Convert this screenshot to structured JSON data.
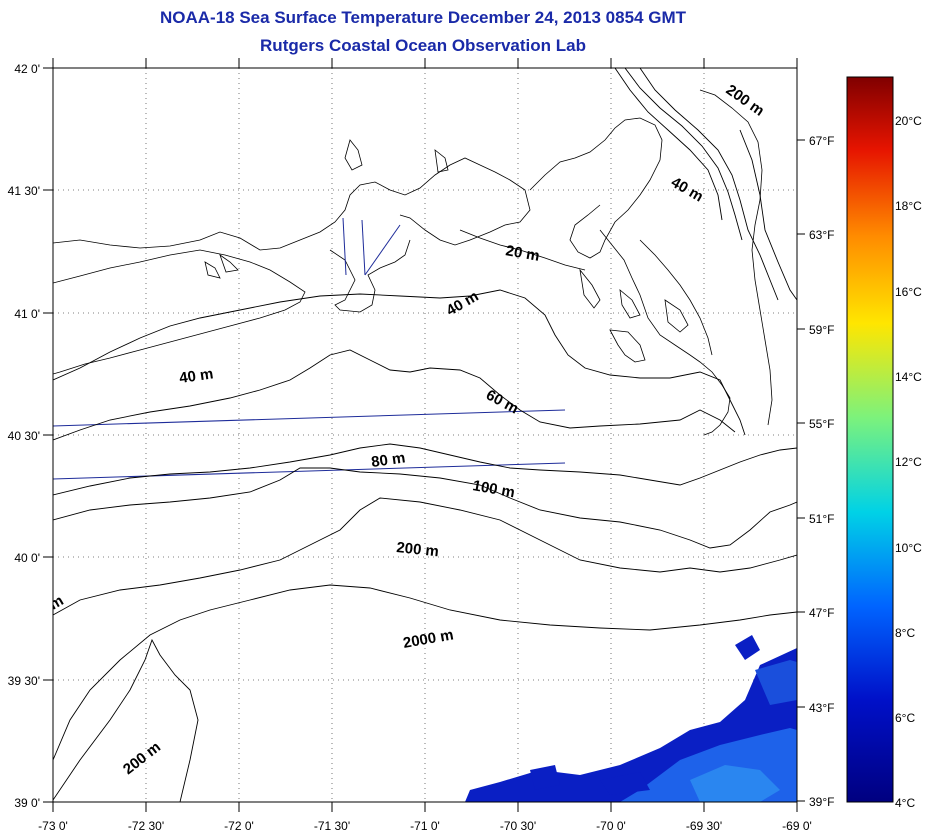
{
  "header": {
    "title": "NOAA-18 Sea Surface Temperature December 24, 2013 0854 GMT",
    "subtitle": "Rutgers Coastal Ocean Observation Lab"
  },
  "map": {
    "lon_labels": [
      "-73 0'",
      "-72 30'",
      "-72 0'",
      "-71 30'",
      "-71 0'",
      "-70 30'",
      "-70 0'",
      "-69 30'",
      "-69 0'"
    ],
    "lat_labels": [
      "42 0'",
      "41 30'",
      "41 0'",
      "40 30'",
      "40 0'",
      "39 30'",
      "39 0'"
    ],
    "fahrenheit_labels": [
      "67°F",
      "63°F",
      "59°F",
      "55°F",
      "51°F",
      "47°F",
      "43°F",
      "39°F"
    ],
    "depth_labels": {
      "d200_ne": "200 m",
      "d40_ne": "40 m",
      "d20": "20 m",
      "d40_center": "40 m",
      "d40_west": "40 m",
      "d60": "60 m",
      "d80": "80 m",
      "d100": "100 m",
      "d200_center": "200 m",
      "d2000": "2000 m",
      "d200_sw": "200 m",
      "dm_edge": "m"
    }
  },
  "colorbar": {
    "labels": [
      "20°C",
      "18°C",
      "16°C",
      "14°C",
      "12°C",
      "10°C",
      "8°C",
      "6°C",
      "4°C"
    ],
    "colors": {
      "c20": "#800000",
      "c18": "#e61400",
      "c16": "#ff8c00",
      "c14": "#ffe600",
      "c12": "#7cf27c",
      "c10": "#00d2e6",
      "c8": "#0064ff",
      "c6": "#0010c8",
      "c4": "#000080"
    }
  }
}
